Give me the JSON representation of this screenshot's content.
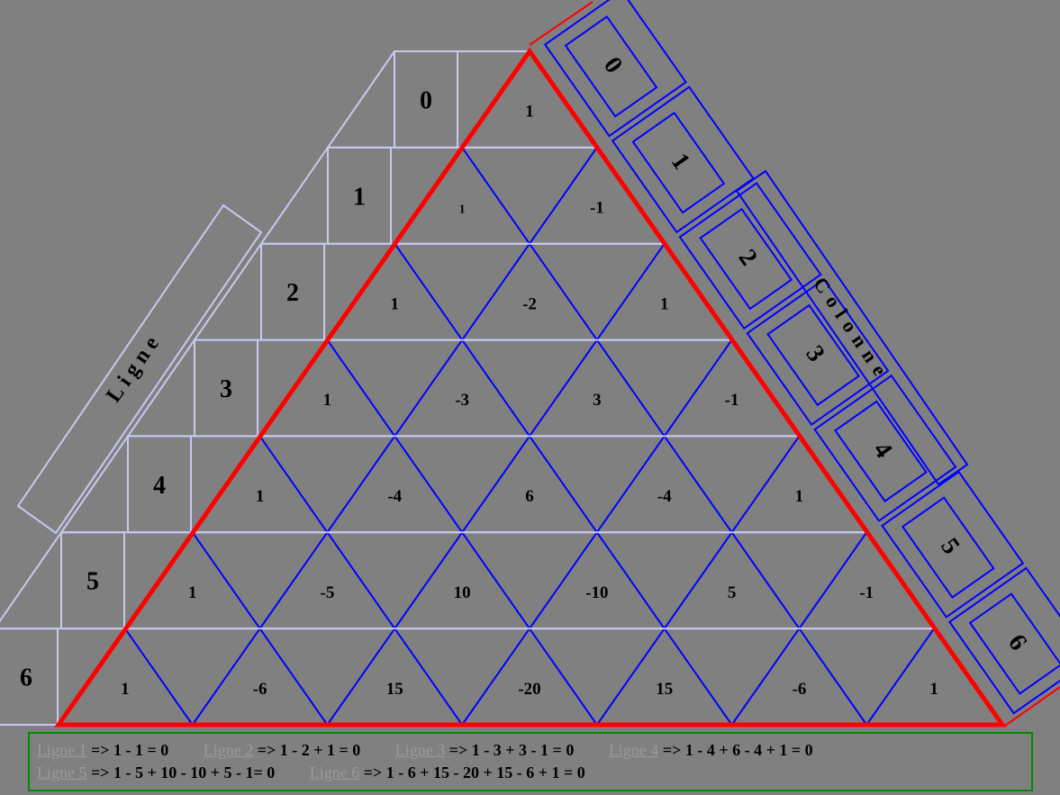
{
  "diagram": {
    "title_left": "Ligne",
    "title_right": "Colonne",
    "colors": {
      "background": "#808080",
      "outline": "#ff0000",
      "grid": "#0000ff",
      "row_guides": "#c8c8f0",
      "footer_border": "#008c00",
      "link": "#9a9a9a"
    },
    "row_labels": [
      "0",
      "1",
      "2",
      "3",
      "4",
      "5",
      "6"
    ],
    "column_labels": [
      "0",
      "1",
      "2",
      "3",
      "4",
      "5",
      "6"
    ],
    "rows": [
      [
        "1"
      ],
      [
        "1",
        "-1"
      ],
      [
        "1",
        "-2",
        "1"
      ],
      [
        "1",
        "-3",
        "3",
        "-1"
      ],
      [
        "1",
        "-4",
        "6",
        "-4",
        "1"
      ],
      [
        "1",
        "-5",
        "10",
        "-10",
        "5",
        "-1"
      ],
      [
        "1",
        "-6",
        "15",
        "-20",
        "15",
        "-6",
        "1"
      ]
    ]
  },
  "footer": {
    "lines": [
      [
        {
          "link": "Ligne 1",
          "expr": "=> 1 - 1 = 0"
        },
        {
          "link": "Ligne 2",
          "expr": "=> 1 - 2 + 1 = 0"
        },
        {
          "link": "Ligne 3",
          "expr": "=> 1 - 3 + 3 - 1 = 0"
        },
        {
          "link": "Ligne 4",
          "expr": "=> 1 - 4 + 6 - 4 + 1 = 0"
        }
      ],
      [
        {
          "link": "Ligne 5",
          "expr": "=> 1 - 5 + 10 - 10  + 5 - 1= 0"
        },
        {
          "link": "Ligne 6",
          "expr": "=> 1 - 6 + 15 - 20 + 15 - 6 + 1 = 0"
        }
      ]
    ]
  }
}
